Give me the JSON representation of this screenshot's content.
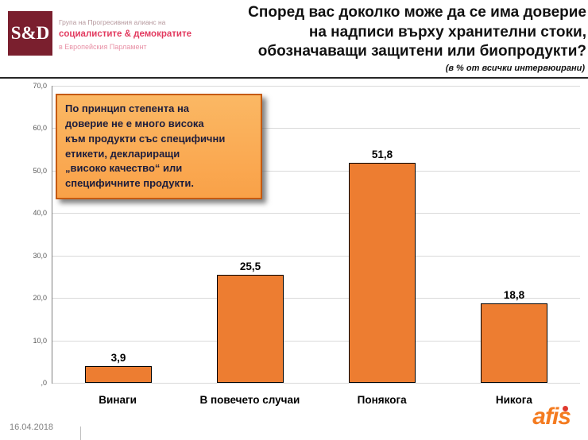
{
  "header": {
    "logo_text": "S&D",
    "org_line1": "Група на Прогресивния алианс на",
    "org_line2": "социалистите & демократите",
    "org_line3": "в Европейския Парламент",
    "title_lines": [
      "Според вас доколко може да се има доверие",
      "на надписи върху хранителни стоки,",
      "обозначаващи защитени или биопродукти?"
    ],
    "subtitle": "(в % от всички интервюирани)"
  },
  "callout": {
    "lines": [
      "По принцип степента на",
      "доверие не е много висока",
      "към продукти със специфични",
      "етикети, деклариращи",
      "„високо качество“ или",
      "специфичните продукти."
    ]
  },
  "chart_data": {
    "type": "bar",
    "categories": [
      "Винаги",
      "В повечето случаи",
      "Понякога",
      "Никога"
    ],
    "values": [
      3.9,
      25.5,
      51.8,
      18.8
    ],
    "value_labels": [
      "3,9",
      "25,5",
      "51,8",
      "18,8"
    ],
    "title": "Според вас доколко може да се има доверие на надписи върху хранителни стоки, обозначаващи защитени или биопродукти?",
    "subtitle": "(в % от всички интервюирани)",
    "xlabel": "",
    "ylabel": "",
    "ylim": [
      0,
      70
    ],
    "ytick_labels": [
      "70,0",
      "60,0",
      "50,0",
      "40,0",
      "30,0",
      "20,0",
      "10,0",
      ",0"
    ],
    "grid": true,
    "legend": false,
    "bar_color": "#ed7d31",
    "bar_border_color": "#000000"
  },
  "footer": {
    "date": "16.04.2018",
    "brand": "afis"
  }
}
